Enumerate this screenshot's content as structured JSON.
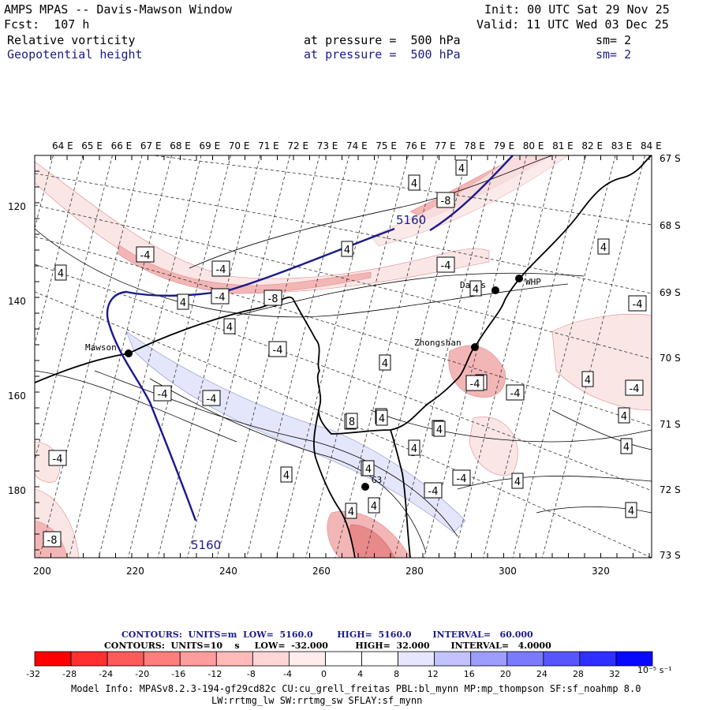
{
  "header": {
    "title": "AMPS MPAS -- Davis-Mawson Window",
    "fcst": "Fcst:  107 h",
    "init": "Init: 00 UTC Sat 29 Nov 25",
    "valid": "Valid: 11 UTC Wed 03 Dec 25",
    "field1": "Relative vorticity",
    "field1_level": "at pressure =  500 hPa",
    "field1_sm": "sm= 2",
    "field2": "Geopotential height",
    "field2_level": "at pressure =  500 hPa",
    "field2_sm": "sm= 2"
  },
  "map": {
    "lon_labels": [
      "64 E",
      "65 E",
      "66 E",
      "67 E",
      "68 E",
      "69 E",
      "70 E",
      "71 E",
      "72 E",
      "73 E",
      "74 E",
      "75 E",
      "76 E",
      "77 E",
      "78 E",
      "79 E",
      "80 E",
      "81 E",
      "82 E",
      "83 E",
      "84 E"
    ],
    "lat_labels": [
      "67 S",
      "68 S",
      "69 S",
      "70 S",
      "71 S",
      "72 S",
      "73 S"
    ],
    "x_ticks": [
      "200",
      "220",
      "240",
      "260",
      "280",
      "300",
      "320"
    ],
    "y_ticks": [
      "120",
      "140",
      "160",
      "180"
    ],
    "stations": [
      {
        "name": "Mawson"
      },
      {
        "name": "Davis"
      },
      {
        "name": "WHP"
      },
      {
        "name": "Zhongshan"
      },
      {
        "name": "G3"
      }
    ],
    "height_labels": [
      "5160",
      "5160"
    ],
    "contour_labels": [
      "4",
      "4",
      "-8",
      "4",
      "-4",
      "-4",
      "4",
      "-4",
      "4",
      "-8",
      "-4",
      "4",
      "-4",
      "4",
      "4",
      "-4",
      "4",
      "4",
      "4",
      "-4",
      "4",
      "4",
      "-4",
      "4",
      "-4",
      "-4",
      "-4",
      "8",
      "8",
      "4",
      "4",
      "4",
      "4",
      "4",
      "-4",
      "-4",
      "4",
      "4",
      "8",
      "4",
      "4",
      "4",
      "-4",
      "-8"
    ],
    "colors": {
      "height_contour": "#1a1a8c",
      "pink_light": "#fbe6e6",
      "pink_mid": "#f3b6b6",
      "pink_dark": "#e88a8a",
      "blue_light": "#e4e6fb"
    }
  },
  "legend": {
    "contours1": "CONTOURS:  UNITS=m  LOW=  5160.0        HIGH=  5160.0       INTERVAL=   60.000",
    "contours2": "CONTOURS:  UNITS=10    s     LOW=  -32.000         HIGH=  32.000       INTERVAL=   4.0000",
    "colorbar_labels": [
      "-32",
      "-28",
      "-24",
      "-20",
      "-16",
      "-12",
      "-8",
      "-4",
      "0",
      "4",
      "8",
      "12",
      "16",
      "20",
      "24",
      "28",
      "32"
    ],
    "colorbar_unit": "10⁻⁵ s⁻¹",
    "colorbar_colors": [
      "#ff0000",
      "#ff3030",
      "#ff5a5a",
      "#ff7d7d",
      "#ff9d9d",
      "#ffbaba",
      "#ffd5d5",
      "#ffecec",
      "#ffffff",
      "#ffffff",
      "#e6e6ff",
      "#c2c2ff",
      "#9d9dff",
      "#7a7aff",
      "#5656ff",
      "#2f2fff",
      "#0808ff"
    ]
  },
  "footer": {
    "line1": "Model Info: MPASv8.2.3-194-gf29cd82c CU:cu_grell_freitas PBL:bl_mynn MP:mp_thompson SF:sf_noahmp 8.0",
    "line2": "LW:rrtmg_lw SW:rrtmg_sw SFLAY:sf_mynn"
  }
}
